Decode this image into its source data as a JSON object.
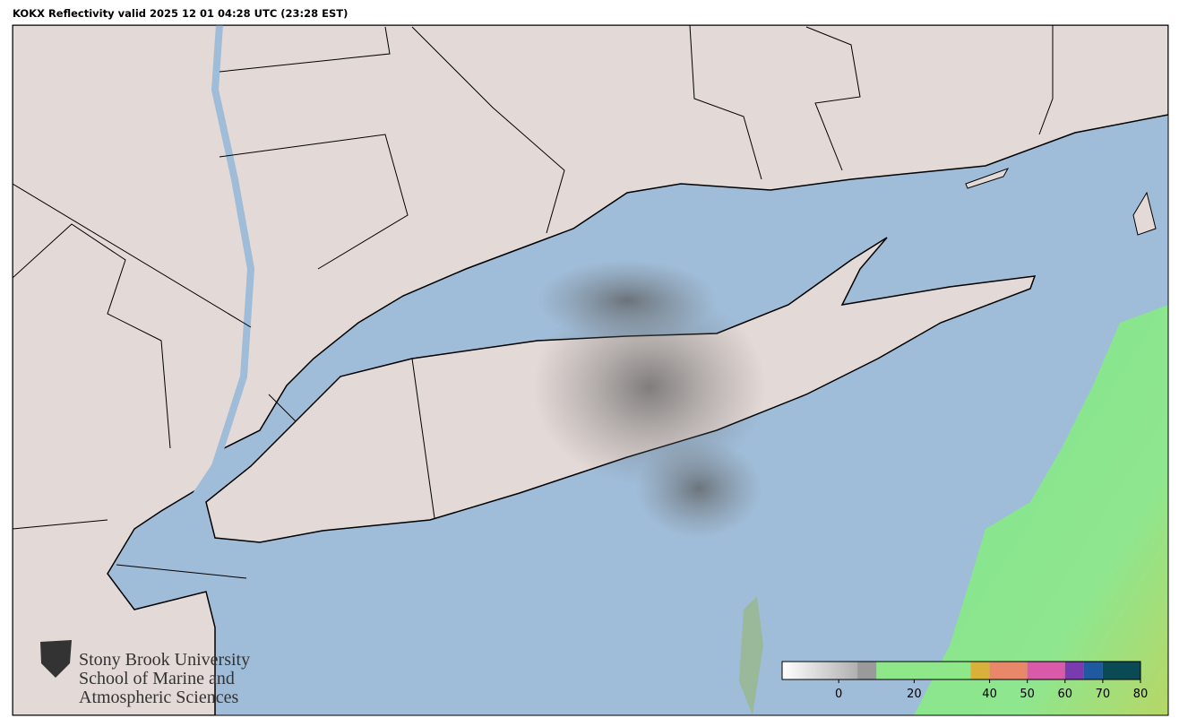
{
  "header": {
    "title": "KOKX Reflectivity valid 2025 12 01 04:28 UTC (23:28 EST)"
  },
  "logo": {
    "lines": [
      "Stony Brook University",
      "School of Marine and",
      "Atmospheric Sciences"
    ]
  },
  "colorbar": {
    "range": [
      -15,
      80
    ],
    "ticks": [
      0,
      20,
      40,
      50,
      60,
      70,
      80
    ],
    "bands": [
      {
        "from": -15,
        "to": 5,
        "color": "#f4f4f4"
      },
      {
        "from": 5,
        "to": 10,
        "color": "#9a9a9a"
      },
      {
        "from": 10,
        "to": 35,
        "color": "#8ee88a"
      },
      {
        "from": 35,
        "to": 40,
        "color": "#d8b03a"
      },
      {
        "from": 40,
        "to": 50,
        "color": "#e8876a"
      },
      {
        "from": 50,
        "to": 60,
        "color": "#d85aa8"
      },
      {
        "from": 60,
        "to": 65,
        "color": "#7a3ab0"
      },
      {
        "from": 65,
        "to": 70,
        "color": "#1f5aa0"
      },
      {
        "from": 70,
        "to": 80,
        "color": "#0a4a55"
      }
    ]
  }
}
